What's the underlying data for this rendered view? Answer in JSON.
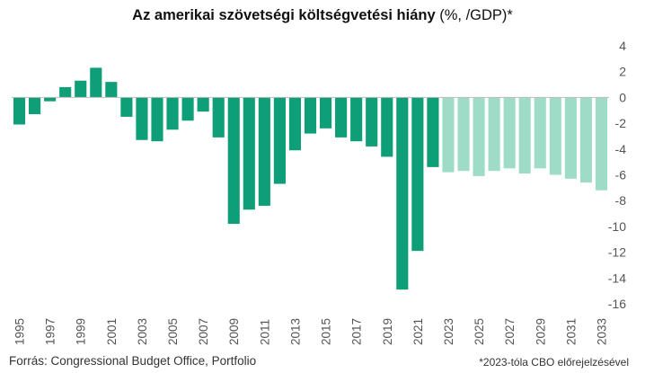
{
  "title_bold": "Az amerikai szövetségi költségvetési hiány",
  "title_unit": "(%, /GDP)*",
  "source": "Forrás: Congressional Budget Office, Portfolio",
  "note": "*2023-tóla CBO előrejelzésével",
  "colors": {
    "actual": "#0e9e78",
    "forecast": "#9fdcc8",
    "zero_line": "#bbbbbb",
    "tick_text": "#555555"
  },
  "chart_data": {
    "type": "bar",
    "title": "Az amerikai szövetségi költségvetési hiány (%, /GDP)*",
    "xlabel": "",
    "ylabel": "",
    "ylim": [
      -16,
      4
    ],
    "yticks": [
      4,
      2,
      0,
      -2,
      -4,
      -6,
      -8,
      -10,
      -12,
      -14,
      -16
    ],
    "y_axis_position": "right",
    "grid": false,
    "xtick_labels": [
      "1995",
      "1997",
      "1999",
      "2001",
      "2003",
      "2005",
      "2007",
      "2009",
      "2011",
      "2013",
      "2015",
      "2017",
      "2019",
      "2021",
      "2023",
      "2025",
      "2027",
      "2029",
      "2031",
      "2033"
    ],
    "categories": [
      "1995",
      "1996",
      "1997",
      "1998",
      "1999",
      "2000",
      "2001",
      "2002",
      "2003",
      "2004",
      "2005",
      "2006",
      "2007",
      "2008",
      "2009",
      "2010",
      "2011",
      "2012",
      "2013",
      "2014",
      "2015",
      "2016",
      "2017",
      "2018",
      "2019",
      "2020",
      "2021",
      "2022",
      "2023",
      "2024",
      "2025",
      "2026",
      "2027",
      "2028",
      "2029",
      "2030",
      "2031",
      "2032",
      "2033"
    ],
    "values": [
      -2.1,
      -1.3,
      -0.3,
      0.8,
      1.3,
      2.3,
      1.2,
      -1.5,
      -3.3,
      -3.4,
      -2.5,
      -1.8,
      -1.1,
      -3.1,
      -9.8,
      -8.7,
      -8.4,
      -6.7,
      -4.1,
      -2.8,
      -2.4,
      -3.1,
      -3.4,
      -3.8,
      -4.6,
      -14.9,
      -11.9,
      -5.4,
      -5.8,
      -5.7,
      -6.1,
      -5.7,
      -5.5,
      -5.9,
      -5.5,
      -6.0,
      -6.3,
      -6.6,
      -7.2
    ],
    "forecast_from": "2023"
  }
}
